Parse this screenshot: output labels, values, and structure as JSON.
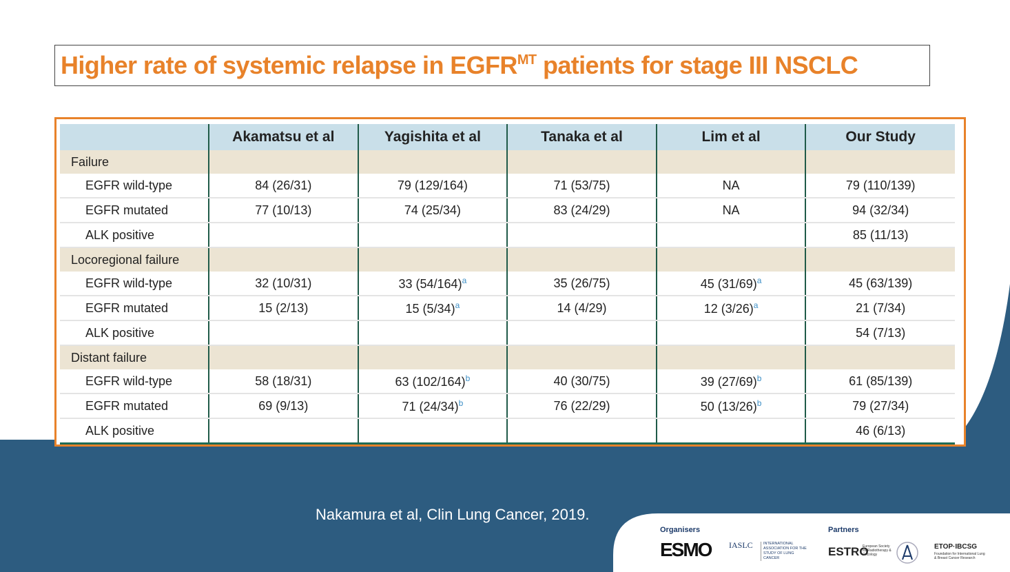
{
  "title": {
    "before": "Higher rate of systemic relapse in EGFR",
    "superscript": "MT",
    "after": "patients for stage III NSCLC"
  },
  "table": {
    "header": [
      "Akamatsu et al",
      "Yagishita et al",
      "Tanaka et al",
      "Lim et al",
      "Our Study"
    ],
    "sections": [
      {
        "label": "Failure",
        "rows": [
          {
            "label": "EGFR wild-type",
            "cells": [
              "84 (26/31)",
              "79 (129/164)",
              "71 (53/75)",
              "NA",
              "79 (110/139)"
            ]
          },
          {
            "label": "EGFR mutated",
            "cells": [
              "77 (10/13)",
              "74 (25/34)",
              "83 (24/29)",
              "NA",
              "94 (32/34)"
            ]
          },
          {
            "label": "ALK positive",
            "cells": [
              null,
              null,
              null,
              null,
              "85 (11/13)"
            ]
          }
        ]
      },
      {
        "label": "Locoregional failure",
        "rows": [
          {
            "label": "EGFR wild-type",
            "cells": [
              "32 (10/31)",
              {
                "text": "33 (54/164)",
                "note": "a"
              },
              "35 (26/75)",
              {
                "text": "45 (31/69)",
                "note": "a"
              },
              "45 (63/139)"
            ]
          },
          {
            "label": "EGFR mutated",
            "cells": [
              "15 (2/13)",
              {
                "text": "15 (5/34)",
                "note": "a"
              },
              "14 (4/29)",
              {
                "text": "12 (3/26)",
                "note": "a"
              },
              "21 (7/34)"
            ]
          },
          {
            "label": "ALK positive",
            "cells": [
              null,
              null,
              null,
              null,
              "54 (7/13)"
            ]
          }
        ]
      },
      {
        "label": "Distant failure",
        "rows": [
          {
            "label": "EGFR wild-type",
            "cells": [
              "58 (18/31)",
              {
                "text": "63 (102/164)",
                "note": "b"
              },
              "40 (30/75)",
              {
                "text": "39 (27/69)",
                "note": "b"
              },
              "61 (85/139)"
            ]
          },
          {
            "label": "EGFR mutated",
            "cells": [
              "69 (9/13)",
              {
                "text": "71 (24/34)",
                "note": "b"
              },
              "76 (22/29)",
              {
                "text": "50 (13/26)",
                "note": "b"
              },
              "79 (27/34)"
            ]
          },
          {
            "label": "ALK positive",
            "cells": [
              null,
              null,
              null,
              null,
              "46 (6/13)"
            ]
          }
        ]
      }
    ]
  },
  "citation": "Nakamura et al, Clin Lung Cancer, 2019.",
  "footer": {
    "organisers": {
      "heading": "Organisers",
      "logos": [
        "ESMO",
        "IASLC"
      ],
      "iaslc_caption": "INTERNATIONAL ASSOCIATION FOR THE STUDY OF LUNG CANCER"
    },
    "partners": {
      "heading": "Partners",
      "logos": [
        "ESTRO",
        "ETOP·IBCSG"
      ],
      "estro_caption": "European Society for Radiotherapy & Oncology",
      "etop_caption": "Foundation for International Lung & Breast Cancer Research"
    }
  }
}
